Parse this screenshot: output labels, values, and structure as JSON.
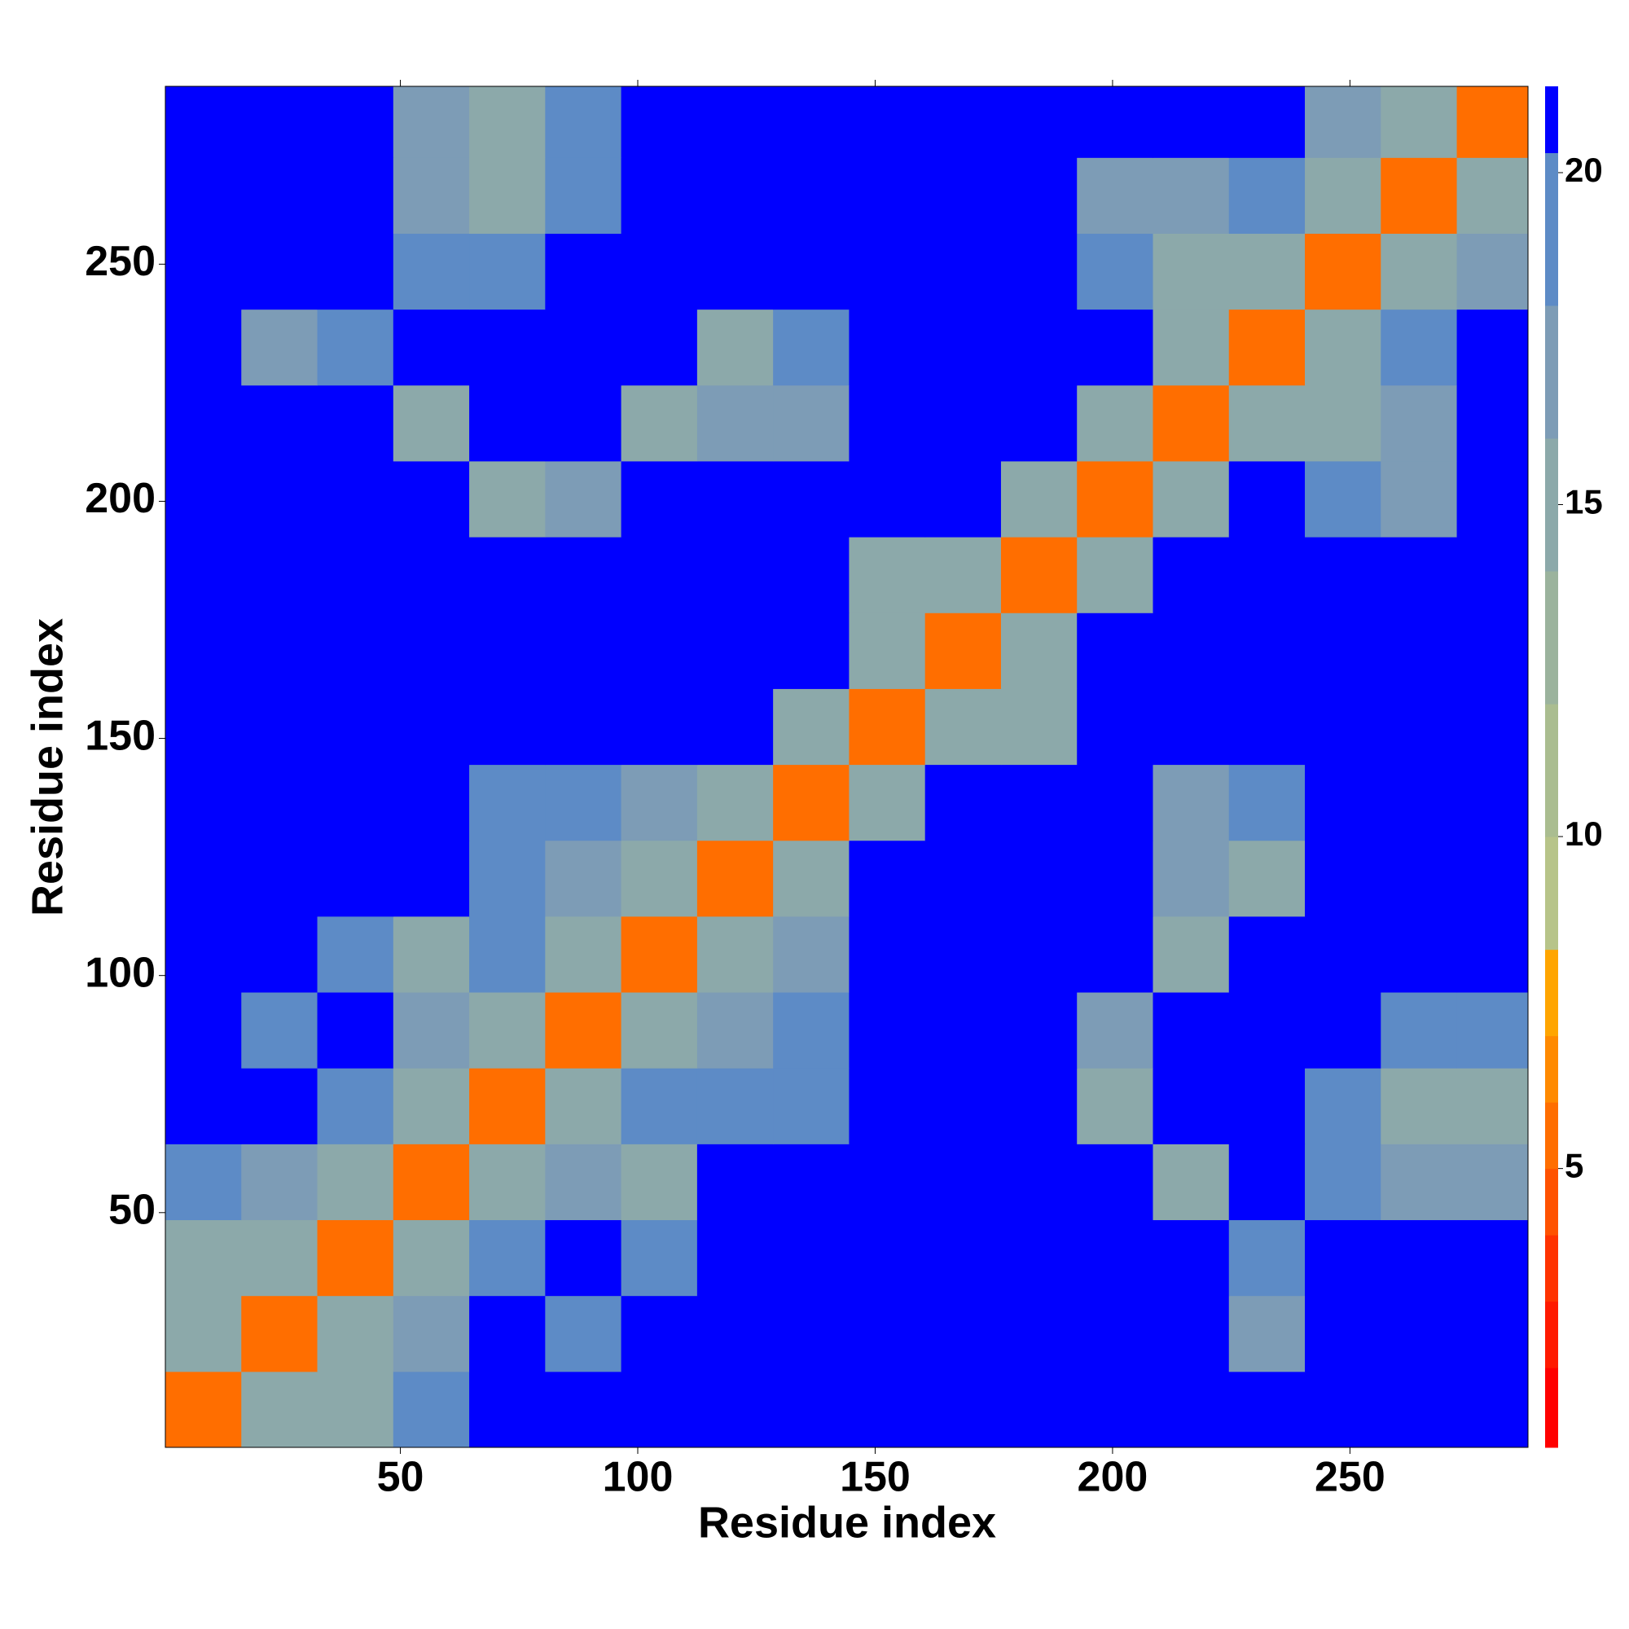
{
  "chart_data": {
    "type": "heatmap",
    "x_label": "Residue index",
    "y_label": "Residue index",
    "xlim": [
      0.5,
      287.5
    ],
    "ylim": [
      0.5,
      287.5
    ],
    "xticks": [
      50,
      100,
      150,
      200,
      250
    ],
    "yticks": [
      50,
      100,
      150,
      200,
      250
    ],
    "x_edges": [
      0.5,
      16.5,
      32.5,
      48.5,
      64.5,
      80.5,
      96.5,
      112.5,
      128.5,
      144.5,
      160.5,
      176.5,
      192.5,
      208.5,
      224.5,
      240.5,
      256.5,
      272.5,
      287.5
    ],
    "y_edges": [
      0.5,
      16.5,
      32.5,
      48.5,
      64.5,
      80.5,
      96.5,
      112.5,
      128.5,
      144.5,
      160.5,
      176.5,
      192.5,
      208.5,
      224.5,
      240.5,
      256.5,
      272.5,
      287.5
    ],
    "z": [
      [
        6,
        16,
        16,
        20,
        21,
        21,
        21,
        21,
        21,
        21,
        21,
        21,
        21,
        21,
        21,
        21,
        21,
        21
      ],
      [
        16,
        6,
        16,
        17,
        21,
        20,
        21,
        21,
        21,
        21,
        21,
        21,
        21,
        21,
        18,
        21,
        21,
        21
      ],
      [
        16,
        16,
        6,
        16,
        20,
        21,
        19,
        21,
        21,
        21,
        21,
        21,
        21,
        21,
        19,
        21,
        21,
        21
      ],
      [
        20,
        17,
        16,
        6,
        16,
        18,
        16,
        21,
        21,
        21,
        21,
        21,
        21,
        15,
        21,
        20,
        18,
        18
      ],
      [
        21,
        21,
        20,
        16,
        6,
        16,
        19,
        19,
        19,
        21,
        21,
        21,
        15,
        21,
        21,
        19,
        16,
        16
      ],
      [
        21,
        20,
        21,
        18,
        16,
        6,
        16,
        18,
        20,
        21,
        21,
        21,
        17,
        21,
        21,
        21,
        20,
        20
      ],
      [
        21,
        21,
        19,
        16,
        19,
        16,
        6,
        16,
        18,
        21,
        21,
        21,
        21,
        15,
        21,
        21,
        21,
        21
      ],
      [
        21,
        21,
        21,
        21,
        19,
        18,
        16,
        6,
        16,
        21,
        21,
        21,
        21,
        18,
        16,
        21,
        21,
        21
      ],
      [
        21,
        21,
        21,
        21,
        19,
        20,
        18,
        16,
        6,
        16,
        21,
        21,
        21,
        18,
        19,
        21,
        21,
        21
      ],
      [
        21,
        21,
        21,
        21,
        21,
        21,
        21,
        21,
        16,
        6,
        16,
        15,
        21,
        21,
        21,
        21,
        21,
        21
      ],
      [
        21,
        21,
        21,
        21,
        21,
        21,
        21,
        21,
        21,
        16,
        6,
        16,
        21,
        21,
        21,
        21,
        21,
        21
      ],
      [
        21,
        21,
        21,
        21,
        21,
        21,
        21,
        21,
        21,
        15,
        16,
        6,
        16,
        21,
        21,
        21,
        21,
        21
      ],
      [
        21,
        21,
        21,
        21,
        15,
        17,
        21,
        21,
        21,
        21,
        21,
        16,
        6,
        16,
        21,
        19,
        17,
        21
      ],
      [
        21,
        21,
        21,
        15,
        21,
        21,
        15,
        18,
        18,
        21,
        21,
        21,
        16,
        6,
        16,
        15,
        18,
        21
      ],
      [
        21,
        18,
        19,
        21,
        21,
        21,
        21,
        16,
        19,
        21,
        21,
        21,
        21,
        16,
        6,
        16,
        20,
        21
      ],
      [
        21,
        21,
        21,
        20,
        19,
        21,
        21,
        21,
        21,
        21,
        21,
        21,
        19,
        15,
        16,
        6,
        16,
        17
      ],
      [
        21,
        21,
        21,
        18,
        16,
        20,
        21,
        21,
        21,
        21,
        21,
        21,
        17,
        18,
        20,
        16,
        6,
        16
      ],
      [
        21,
        21,
        21,
        18,
        16,
        20,
        21,
        21,
        21,
        21,
        21,
        21,
        21,
        21,
        21,
        17,
        16,
        6
      ]
    ],
    "colorbar": {
      "lim": [
        0.8,
        21.3
      ],
      "ticks": [
        5,
        10,
        15,
        20
      ],
      "levels": [
        0.8,
        2,
        3,
        4,
        5,
        6,
        7,
        8.3,
        10,
        12,
        14,
        16,
        18,
        20.3,
        21.3
      ],
      "colors": [
        "#ff0000",
        "#ff1a00",
        "#ff3300",
        "#ff5200",
        "#ff6e00",
        "#ff8a00",
        "#ffa500",
        "#b7c489",
        "#aabd90",
        "#9bb39d",
        "#8ca9aa",
        "#7d9cb6",
        "#5d8bc6",
        "#0000ff"
      ]
    }
  }
}
